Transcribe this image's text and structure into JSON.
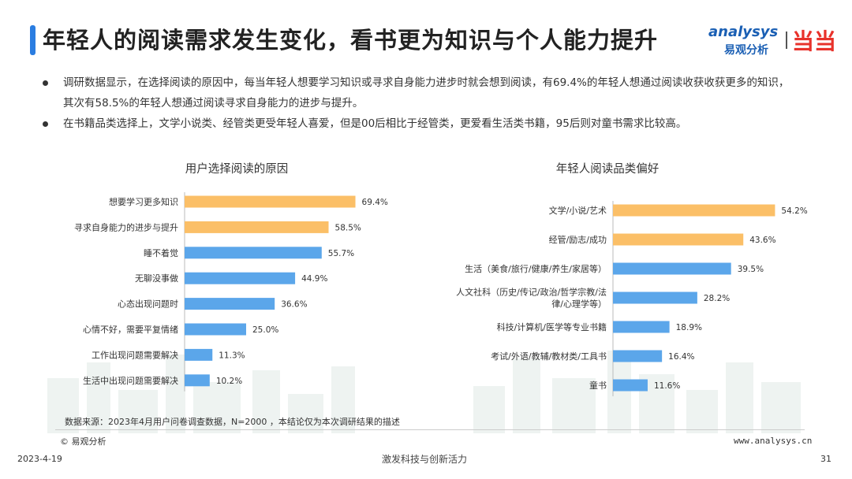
{
  "header": {
    "title": "年轻人的阅读需求发生变化，看书更为知识与个人能力提升",
    "logo_en": "analysys",
    "logo_cn": "易观分析",
    "logo_dd": "当当"
  },
  "bullets": [
    "调研数据显示，在选择阅读的原因中，每当年轻人想要学习知识或寻求自身能力进步时就会想到阅读，有69.4%的年轻人想通过阅读收获收获更多的知识，其次有58.5%的年轻人想通过阅读寻求自身能力的进步与提升。",
    "在书籍品类选择上，文学小说类、经管类更受年轻人喜爱，但是00后相比于经管类，更爱看生活类书籍，95后则对童书需求比较高。"
  ],
  "chart_data": [
    {
      "type": "bar",
      "orientation": "horizontal",
      "title": "用户选择阅读的原因",
      "categories": [
        "想要学习更多知识",
        "寻求自身能力的进步与提升",
        "睡不着觉",
        "无聊没事做",
        "心态出现问题时",
        "心情不好，需要平复情绪",
        "工作出现问题需要解决",
        "生活中出现问题需要解决"
      ],
      "values": [
        69.4,
        58.5,
        55.7,
        44.9,
        36.6,
        25.0,
        11.3,
        10.2
      ],
      "labels": [
        "69.4%",
        "58.5%",
        "55.7%",
        "44.9%",
        "36.6%",
        "25.0%",
        "11.3%",
        "10.2%"
      ],
      "colors": [
        "#fbbf67",
        "#fbbf67",
        "#5ba6ea",
        "#5ba6ea",
        "#5ba6ea",
        "#5ba6ea",
        "#5ba6ea",
        "#5ba6ea"
      ],
      "xlim": [
        0,
        100
      ]
    },
    {
      "type": "bar",
      "orientation": "horizontal",
      "title": "年轻人阅读品类偏好",
      "categories": [
        [
          "文学/小说/艺术"
        ],
        [
          "经管/励志/成功"
        ],
        [
          "生活（美食/旅行/健康/养生/家居等）"
        ],
        [
          "人文社科（历史/传记/政治/哲学宗教/法",
          "律/心理学等）"
        ],
        [
          "科技/计算机/医学等专业书籍"
        ],
        [
          "考试/外语/教辅/教材类/工具书"
        ],
        [
          "童书"
        ]
      ],
      "values": [
        54.2,
        43.6,
        39.5,
        28.2,
        18.9,
        16.4,
        11.6
      ],
      "labels": [
        "54.2%",
        "43.6%",
        "39.5%",
        "28.2%",
        "18.9%",
        "16.4%",
        "11.6%"
      ],
      "colors": [
        "#fbbf67",
        "#fbbf67",
        "#5ba6ea",
        "#5ba6ea",
        "#5ba6ea",
        "#5ba6ea",
        "#5ba6ea"
      ],
      "xlim": [
        0,
        100
      ]
    }
  ],
  "footer": {
    "source": "数据来源：2023年4月用户问卷调查数据，N=2000 ，本结论仅为本次调研结果的描述",
    "copyright": "© 易观分析",
    "website": "www.analysys.cn",
    "date": "2023-4-19",
    "slogan": "激发科技与创新活力",
    "page": "31"
  }
}
